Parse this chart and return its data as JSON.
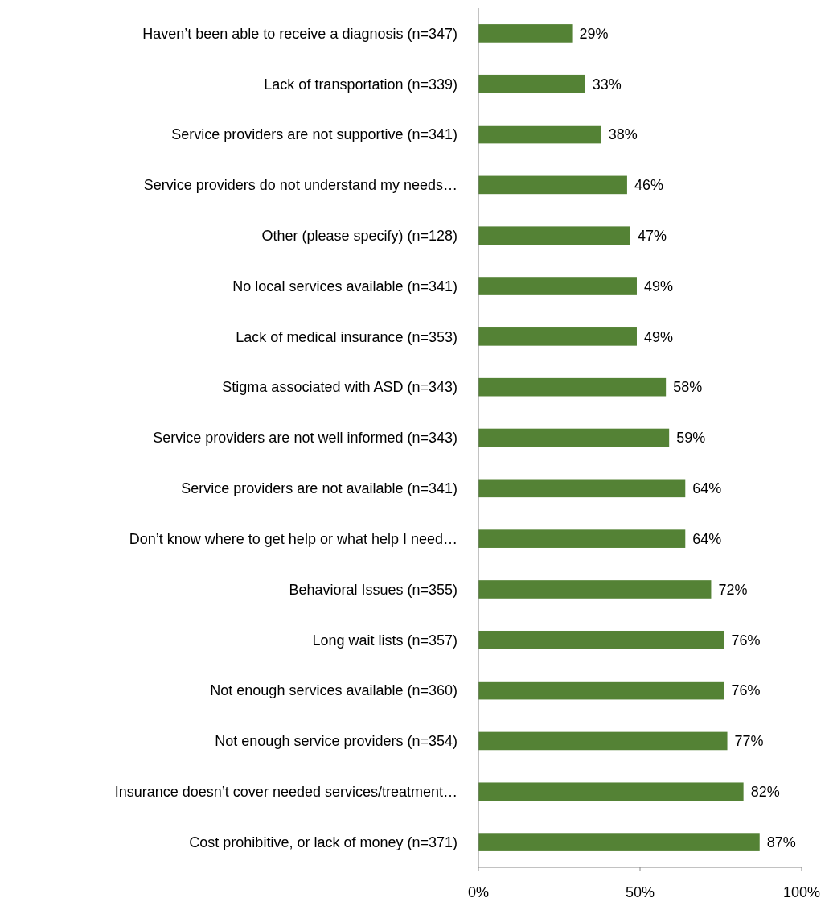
{
  "chart_data": {
    "type": "bar",
    "orientation": "horizontal",
    "categories": [
      "Haven’t been able to receive a diagnosis (n=347)",
      "Lack of transportation (n=339)",
      "Service providers are not supportive (n=341)",
      "Service providers do not understand my needs…",
      "Other (please specify) (n=128)",
      "No local services available (n=341)",
      "Lack of medical insurance (n=353)",
      "Stigma associated with ASD (n=343)",
      "Service providers are not well informed (n=343)",
      "Service providers are not available (n=341)",
      "Don’t know where to get help or what help I need…",
      "Behavioral Issues (n=355)",
      "Long wait lists (n=357)",
      "Not enough services available (n=360)",
      "Not enough service providers (n=354)",
      "Insurance doesn’t cover needed services/treatment…",
      "Cost prohibitive, or lack of money (n=371)"
    ],
    "values": [
      29,
      33,
      38,
      46,
      47,
      49,
      49,
      58,
      59,
      64,
      64,
      72,
      76,
      76,
      77,
      82,
      87
    ],
    "value_labels": [
      "29%",
      "33%",
      "38%",
      "46%",
      "47%",
      "49%",
      "49%",
      "58%",
      "59%",
      "64%",
      "64%",
      "72%",
      "76%",
      "76%",
      "77%",
      "82%",
      "87%"
    ],
    "color": "#548235",
    "xlim": [
      0,
      100
    ],
    "xticks": [
      {
        "value": 0,
        "label": "0%"
      },
      {
        "value": 50,
        "label": "50%"
      },
      {
        "value": 100,
        "label": "100%"
      }
    ],
    "grid": false
  }
}
